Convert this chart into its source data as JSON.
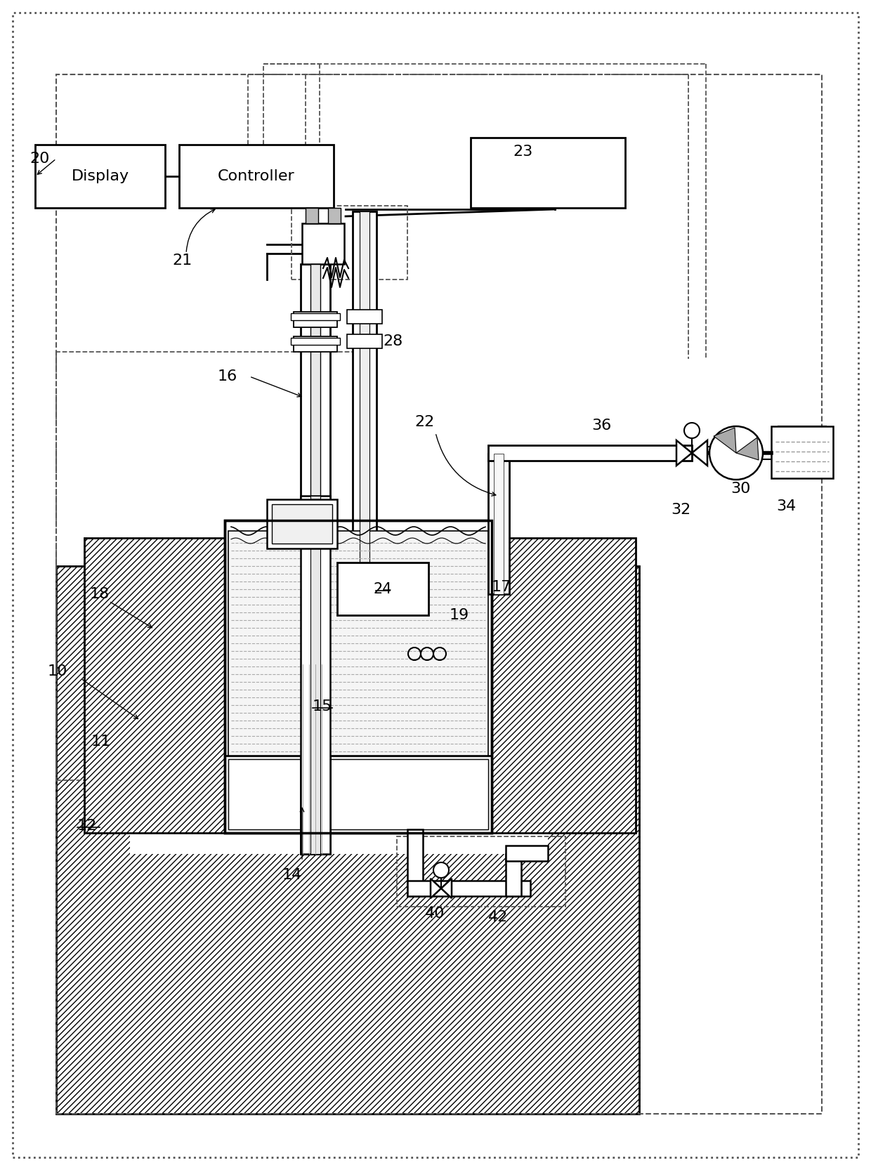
{
  "fig_width": 12.4,
  "fig_height": 16.66,
  "bg": "#ffffff",
  "lc": "#000000",
  "gray": "#888888",
  "lgray": "#cccccc"
}
